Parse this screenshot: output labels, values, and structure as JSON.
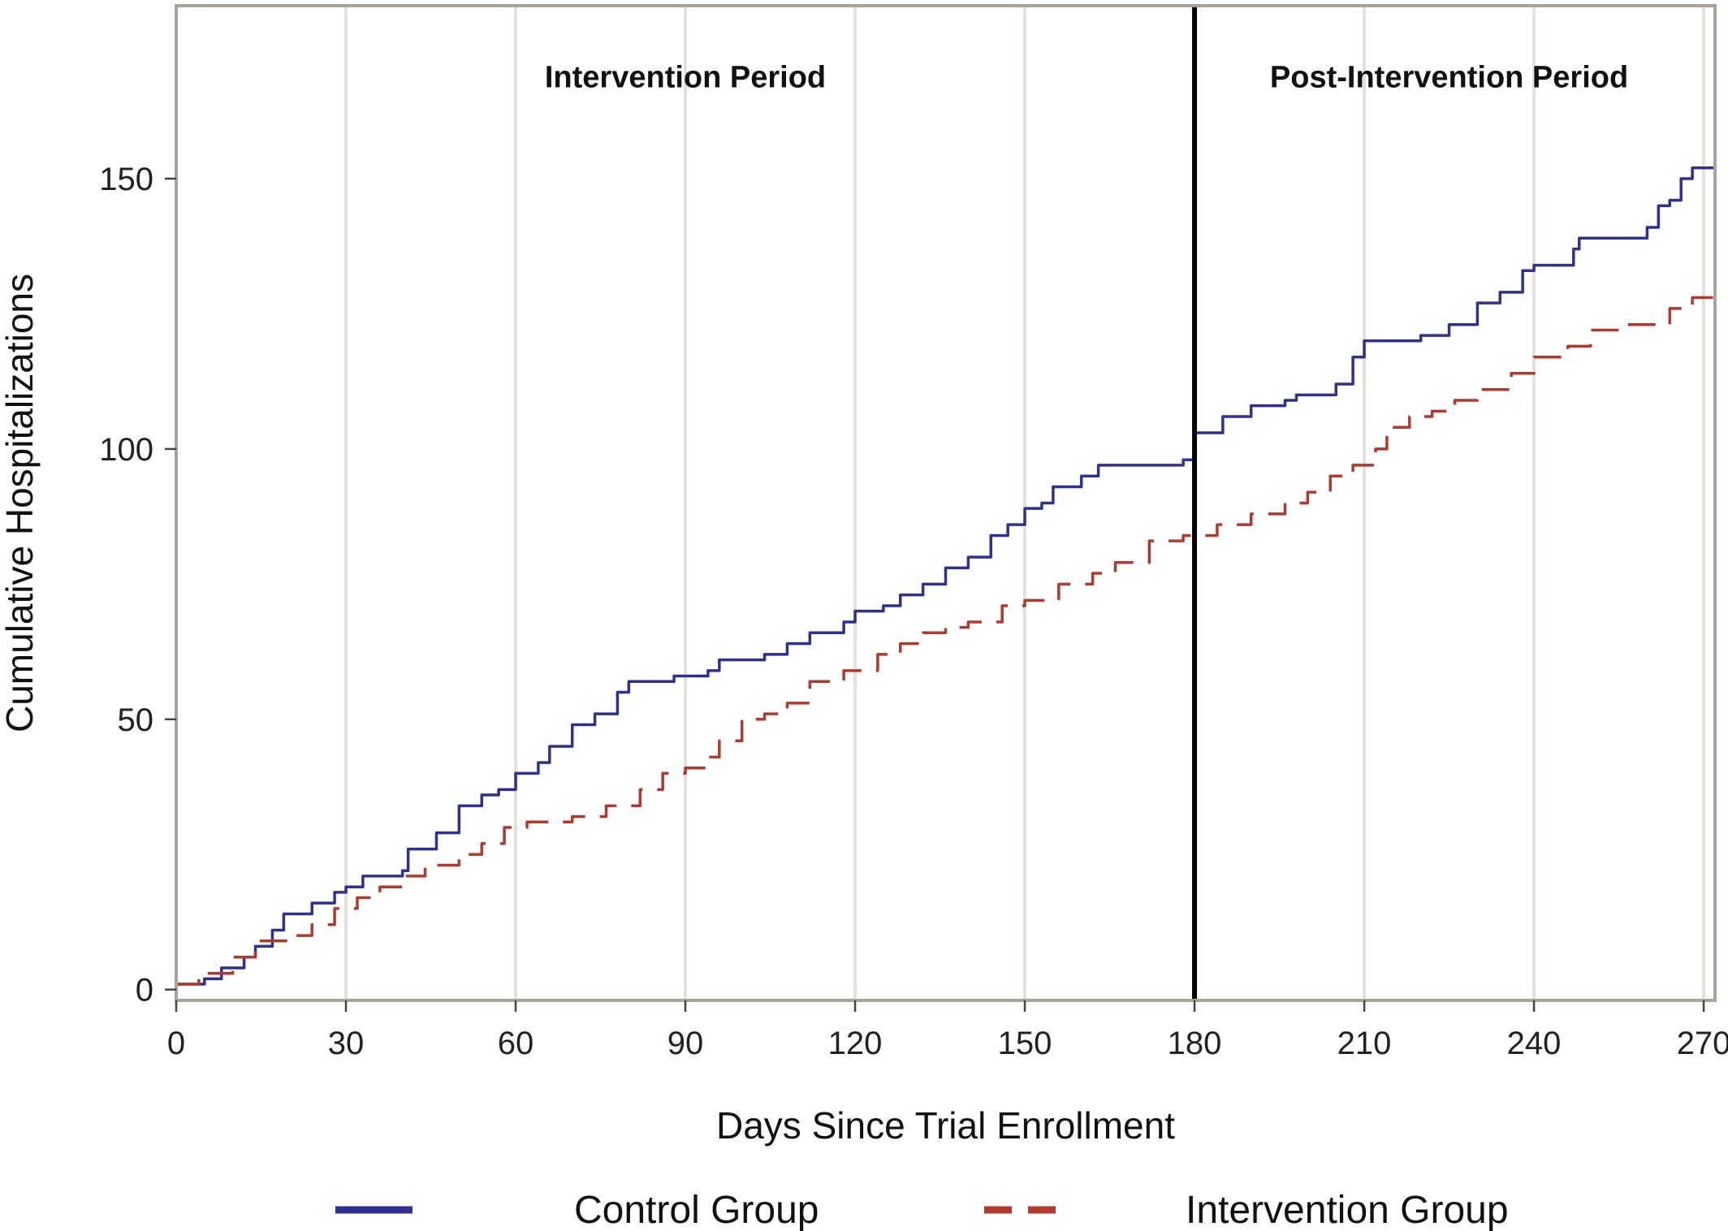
{
  "chart_data": {
    "type": "line",
    "xlabel": "Days Since Trial Enrollment",
    "ylabel": "Cumulative Hospitalizations",
    "xlim": [
      0,
      272
    ],
    "ylim": [
      -2,
      182
    ],
    "xticks": [
      0,
      30,
      60,
      90,
      120,
      150,
      180,
      210,
      240,
      270
    ],
    "yticks": [
      0,
      50,
      100,
      150
    ],
    "grid": "vertical",
    "legend_position": "bottom",
    "reference_line": {
      "x": 180
    },
    "annotations": [
      {
        "text": "Intervention Period",
        "x": 90,
        "y": 169
      },
      {
        "text": "Post-Intervention Period",
        "x": 225,
        "y": 169
      }
    ],
    "series": [
      {
        "name": "Control Group",
        "color": "#2e3192",
        "style": "solid",
        "points": [
          [
            0,
            1
          ],
          [
            5,
            2
          ],
          [
            8,
            4
          ],
          [
            12,
            6
          ],
          [
            14,
            8
          ],
          [
            17,
            11
          ],
          [
            19,
            14
          ],
          [
            24,
            16
          ],
          [
            28,
            18
          ],
          [
            30,
            19
          ],
          [
            33,
            21
          ],
          [
            40,
            22
          ],
          [
            41,
            26
          ],
          [
            46,
            29
          ],
          [
            50,
            34
          ],
          [
            54,
            36
          ],
          [
            57,
            37
          ],
          [
            60,
            40
          ],
          [
            64,
            42
          ],
          [
            66,
            45
          ],
          [
            70,
            49
          ],
          [
            74,
            51
          ],
          [
            78,
            55
          ],
          [
            80,
            57
          ],
          [
            88,
            58
          ],
          [
            94,
            59
          ],
          [
            96,
            61
          ],
          [
            104,
            62
          ],
          [
            108,
            64
          ],
          [
            112,
            66
          ],
          [
            118,
            68
          ],
          [
            120,
            70
          ],
          [
            125,
            71
          ],
          [
            128,
            73
          ],
          [
            132,
            75
          ],
          [
            136,
            78
          ],
          [
            140,
            80
          ],
          [
            144,
            84
          ],
          [
            147,
            86
          ],
          [
            150,
            89
          ],
          [
            153,
            90
          ],
          [
            155,
            93
          ],
          [
            160,
            95
          ],
          [
            163,
            97
          ],
          [
            178,
            98
          ],
          [
            180,
            103
          ],
          [
            185,
            106
          ],
          [
            190,
            108
          ],
          [
            196,
            109
          ],
          [
            198,
            110
          ],
          [
            205,
            112
          ],
          [
            208,
            117
          ],
          [
            210,
            120
          ],
          [
            220,
            121
          ],
          [
            225,
            123
          ],
          [
            230,
            127
          ],
          [
            234,
            129
          ],
          [
            238,
            133
          ],
          [
            240,
            134
          ],
          [
            247,
            137
          ],
          [
            248,
            139
          ],
          [
            260,
            141
          ],
          [
            262,
            145
          ],
          [
            264,
            146
          ],
          [
            266,
            150
          ],
          [
            268,
            152
          ],
          [
            272,
            154
          ]
        ]
      },
      {
        "name": "Intervention Group",
        "color": "#b03a2e",
        "style": "dashed",
        "points": [
          [
            0,
            1
          ],
          [
            4,
            3
          ],
          [
            10,
            6
          ],
          [
            14,
            9
          ],
          [
            20,
            10
          ],
          [
            24,
            12
          ],
          [
            28,
            15
          ],
          [
            32,
            17
          ],
          [
            36,
            19
          ],
          [
            40,
            21
          ],
          [
            44,
            23
          ],
          [
            50,
            25
          ],
          [
            54,
            27
          ],
          [
            58,
            30
          ],
          [
            62,
            31
          ],
          [
            70,
            32
          ],
          [
            76,
            34
          ],
          [
            82,
            37
          ],
          [
            86,
            40
          ],
          [
            90,
            41
          ],
          [
            94,
            43
          ],
          [
            96,
            46
          ],
          [
            100,
            50
          ],
          [
            104,
            51
          ],
          [
            108,
            53
          ],
          [
            112,
            57
          ],
          [
            118,
            59
          ],
          [
            124,
            62
          ],
          [
            128,
            64
          ],
          [
            132,
            66
          ],
          [
            136,
            67
          ],
          [
            140,
            68
          ],
          [
            146,
            71
          ],
          [
            150,
            72
          ],
          [
            156,
            75
          ],
          [
            162,
            77
          ],
          [
            166,
            79
          ],
          [
            172,
            83
          ],
          [
            178,
            84
          ],
          [
            184,
            86
          ],
          [
            190,
            88
          ],
          [
            196,
            90
          ],
          [
            200,
            92
          ],
          [
            204,
            95
          ],
          [
            208,
            97
          ],
          [
            212,
            100
          ],
          [
            214,
            104
          ],
          [
            218,
            106
          ],
          [
            222,
            107
          ],
          [
            226,
            109
          ],
          [
            230,
            111
          ],
          [
            236,
            114
          ],
          [
            240,
            117
          ],
          [
            246,
            119
          ],
          [
            250,
            122
          ],
          [
            256,
            123
          ],
          [
            264,
            126
          ],
          [
            268,
            128
          ],
          [
            272,
            130
          ]
        ]
      }
    ]
  }
}
